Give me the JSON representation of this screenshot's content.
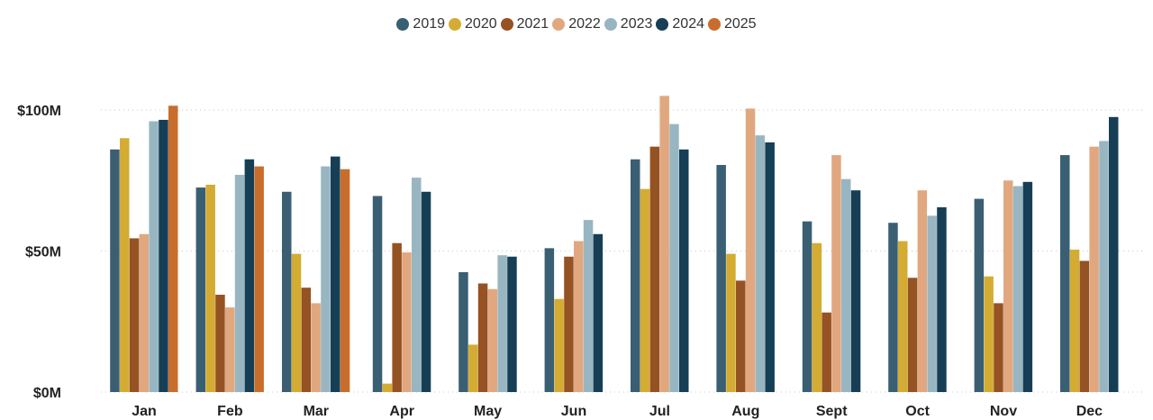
{
  "chart_data": {
    "type": "bar",
    "title": "",
    "xlabel": "",
    "ylabel": "",
    "categories": [
      "Jan",
      "Feb",
      "Mar",
      "Apr",
      "May",
      "Jun",
      "Jul",
      "Aug",
      "Sept",
      "Oct",
      "Nov",
      "Dec"
    ],
    "y_ticks": [
      {
        "value": 0,
        "label": "$0M"
      },
      {
        "value": 50,
        "label": "$50M"
      },
      {
        "value": 100,
        "label": "$100M"
      }
    ],
    "ylim": [
      0,
      100
    ],
    "grid": true,
    "legend_position": "top-center",
    "series": [
      {
        "name": "2019",
        "color": "#3a5f73",
        "values": [
          86,
          72.5,
          71,
          69.5,
          42.5,
          51,
          82.5,
          80.5,
          60.5,
          60,
          68.5,
          84
        ]
      },
      {
        "name": "2020",
        "color": "#d4ac33",
        "values": [
          90,
          73.5,
          49,
          3,
          16.8,
          33,
          72,
          49,
          52.8,
          53.5,
          41,
          50.5
        ]
      },
      {
        "name": "2021",
        "color": "#955223",
        "values": [
          54.5,
          34.5,
          37,
          52.8,
          38.5,
          48,
          87,
          39.5,
          28.2,
          40.5,
          31.5,
          46.5
        ]
      },
      {
        "name": "2022",
        "color": "#e1a77f",
        "values": [
          56,
          30,
          31.5,
          49.5,
          36.5,
          53.5,
          105,
          100.5,
          84,
          71.5,
          75,
          87
        ]
      },
      {
        "name": "2023",
        "color": "#98b6c1",
        "values": [
          96,
          77,
          80,
          76,
          48.5,
          61,
          95,
          91,
          75.5,
          62.5,
          73,
          89
        ]
      },
      {
        "name": "2024",
        "color": "#163f56",
        "values": [
          96.5,
          82.5,
          83.5,
          71,
          48,
          56,
          86,
          88.5,
          71.5,
          65.5,
          74.5,
          97.5
        ]
      },
      {
        "name": "2025",
        "color": "#c96d2c",
        "values": [
          101.5,
          80,
          79,
          null,
          null,
          null,
          null,
          null,
          null,
          null,
          null,
          null
        ]
      }
    ]
  }
}
